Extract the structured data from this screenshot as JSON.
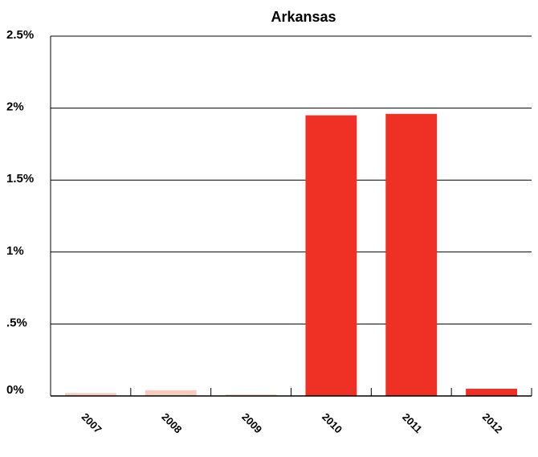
{
  "chart_data": {
    "type": "bar",
    "title": "Arkansas",
    "xlabel": "",
    "ylabel": "",
    "categories": [
      "2007",
      "2008",
      "2009",
      "2010",
      "2011",
      "2012"
    ],
    "values": [
      0.02,
      0.04,
      0.01,
      1.95,
      1.96,
      0.05
    ],
    "ylim": [
      0,
      2.5
    ],
    "yticks": [
      0,
      0.5,
      1,
      1.5,
      2,
      2.5
    ],
    "ytick_labels": [
      "0%",
      ".5%",
      "1%",
      "1.5%",
      "2%",
      "2.5%"
    ],
    "grid": true,
    "legend": "none",
    "bar_colors": [
      "#f7cbbd",
      "#f7cbbd",
      "#f7cbbd",
      "#ee3124",
      "#ee3124",
      "#ee3124"
    ],
    "axis_color": "#000000"
  }
}
